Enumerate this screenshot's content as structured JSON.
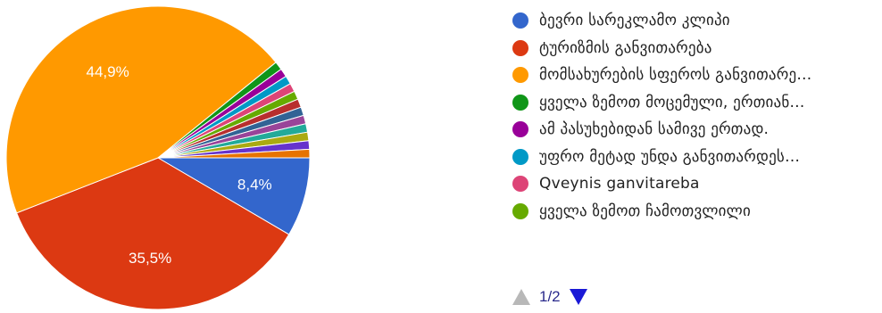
{
  "chart_data": {
    "type": "pie",
    "slices": [
      {
        "label": "ბევრი სარეკლამო კლიპი",
        "value": 8.4,
        "color": "#3366cc",
        "show_label": true,
        "display": "8,4%"
      },
      {
        "label": "ტურიზმის განვითარება",
        "value": 35.5,
        "color": "#dc3912",
        "show_label": true,
        "display": "35,5%"
      },
      {
        "label": "მომსახურების სფეროს განვითარე…",
        "value": 44.9,
        "color": "#ff9900",
        "show_label": true,
        "display": "44,9%"
      },
      {
        "label": "ყველა ზემოთ მოცემული, ერთიან…",
        "value": 0.9,
        "color": "#109618",
        "show_label": false,
        "display": ""
      },
      {
        "label": "ამ პასუხებიდან სამივე ერთად.",
        "value": 0.9,
        "color": "#990099",
        "show_label": false,
        "display": ""
      },
      {
        "label": "უფრო მეტად უნდა განვითარდეს…",
        "value": 0.9,
        "color": "#0099c6",
        "show_label": false,
        "display": ""
      },
      {
        "label": "Qveynis ganvitareba",
        "value": 0.9,
        "color": "#dd4477",
        "show_label": false,
        "display": ""
      },
      {
        "label": "ყველა ზემოთ ჩამოთვლილი",
        "value": 0.9,
        "color": "#66aa00",
        "show_label": false,
        "display": ""
      },
      {
        "label": "",
        "value": 0.9,
        "color": "#b82e2e",
        "show_label": false,
        "display": ""
      },
      {
        "label": "",
        "value": 0.9,
        "color": "#316395",
        "show_label": false,
        "display": ""
      },
      {
        "label": "",
        "value": 0.9,
        "color": "#994499",
        "show_label": false,
        "display": ""
      },
      {
        "label": "",
        "value": 0.9,
        "color": "#22aa99",
        "show_label": false,
        "display": ""
      },
      {
        "label": "",
        "value": 0.9,
        "color": "#aaaa11",
        "show_label": false,
        "display": ""
      },
      {
        "label": "",
        "value": 0.9,
        "color": "#6633cc",
        "show_label": false,
        "display": ""
      },
      {
        "label": "",
        "value": 0.9,
        "color": "#e67300",
        "show_label": false,
        "display": ""
      }
    ],
    "legend_placement": "right"
  },
  "legend": {
    "items": [
      {
        "label": "ბევრი სარეკლამო კლიპი",
        "color": "#3366cc"
      },
      {
        "label": "ტურიზმის განვითარება",
        "color": "#dc3912"
      },
      {
        "label": "მომსახურების სფეროს განვითარე…",
        "color": "#ff9900"
      },
      {
        "label": "ყველა ზემოთ მოცემული, ერთიან…",
        "color": "#109618"
      },
      {
        "label": "ამ პასუხებიდან სამივე ერთად.",
        "color": "#990099"
      },
      {
        "label": "უფრო მეტად უნდა განვითარდეს…",
        "color": "#0099c6"
      },
      {
        "label": "Qveynis ganvitareba",
        "color": "#dd4477"
      },
      {
        "label": "ყველა ზემოთ ჩამოთვლილი",
        "color": "#66aa00"
      }
    ]
  },
  "pager": {
    "text": "1/2"
  }
}
